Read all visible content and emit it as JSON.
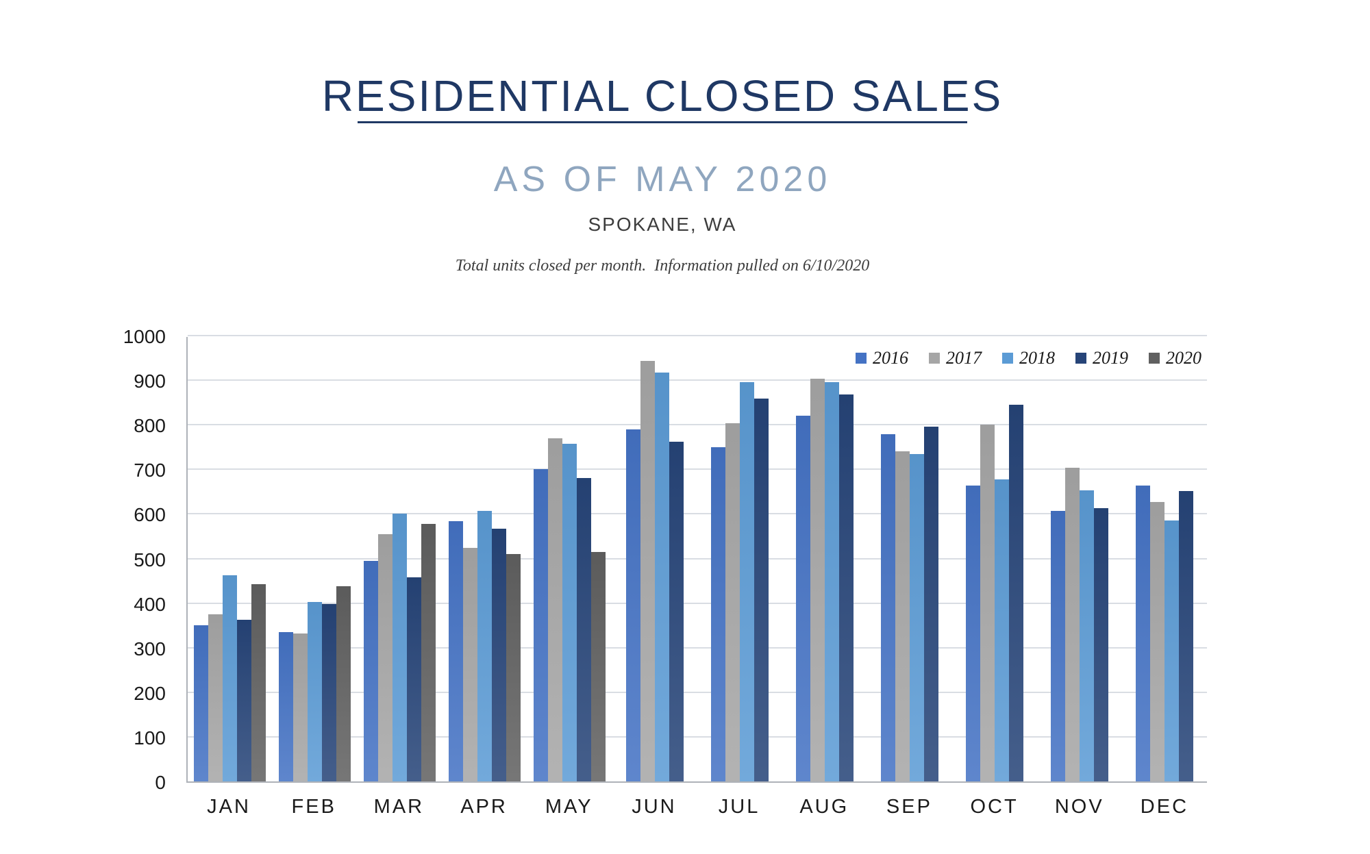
{
  "header": {
    "title": "RESIDENTIAL CLOSED SALES",
    "subtitle": "AS OF MAY 2020",
    "location": "SPOKANE, WA",
    "note": "Total units closed per month.  Information pulled on 6/10/2020"
  },
  "chart_data": {
    "type": "bar",
    "title": "RESIDENTIAL CLOSED SALES",
    "xlabel": "",
    "ylabel": "",
    "ylim": [
      0,
      1000
    ],
    "ytick_step": 100,
    "grid": true,
    "legend_position": "top-right",
    "categories": [
      "JAN",
      "FEB",
      "MAR",
      "APR",
      "MAY",
      "JUN",
      "JUL",
      "AUG",
      "SEP",
      "OCT",
      "NOV",
      "DEC"
    ],
    "series": [
      {
        "name": "2016",
        "color": "#4472C4",
        "values": [
          350,
          335,
          494,
          584,
          701,
          790,
          749,
          820,
          779,
          663,
          607,
          663
        ]
      },
      {
        "name": "2017",
        "color": "#A6A6A6",
        "values": [
          375,
          332,
          555,
          524,
          769,
          943,
          804,
          903,
          741,
          801,
          703,
          627
        ]
      },
      {
        "name": "2018",
        "color": "#5B9BD5",
        "values": [
          462,
          402,
          600,
          607,
          757,
          917,
          895,
          895,
          735,
          678,
          653,
          586
        ]
      },
      {
        "name": "2019",
        "color": "#264478",
        "values": [
          363,
          398,
          457,
          567,
          680,
          762,
          859,
          868,
          796,
          845,
          613,
          652
        ]
      },
      {
        "name": "2020",
        "color": "#606060",
        "values": [
          443,
          438,
          577,
          510,
          515,
          null,
          null,
          null,
          null,
          null,
          null,
          null
        ]
      }
    ]
  },
  "style": {
    "title_color": "#1F3864",
    "subtitle_color": "#8FA6BF",
    "text_color": "#3D3D3D",
    "tick_color": "#1A1A1A",
    "gridline_color": "#D9DDE3",
    "axis_color": "#AEB2B8"
  }
}
